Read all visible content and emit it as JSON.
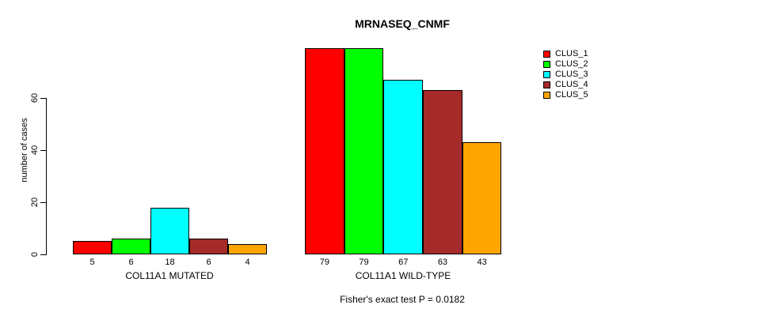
{
  "chart_data": {
    "type": "bar",
    "title": "MRNASEQ_CNMF",
    "ylabel": "number of cases",
    "yticks": [
      0,
      20,
      40,
      60
    ],
    "ylim": [
      0,
      80
    ],
    "grid": false,
    "legend_position": "top-right",
    "series": [
      {
        "name": "CLUS_1",
        "color": "#FF0000"
      },
      {
        "name": "CLUS_2",
        "color": "#00FF00"
      },
      {
        "name": "CLUS_3",
        "color": "#00FFFF"
      },
      {
        "name": "CLUS_4",
        "color": "#A52A2A"
      },
      {
        "name": "CLUS_5",
        "color": "#FFA500"
      }
    ],
    "groups": [
      {
        "label": "COL11A1 MUTATED",
        "values": [
          5,
          6,
          18,
          6,
          4
        ]
      },
      {
        "label": "COL11A1 WILD-TYPE",
        "values": [
          79,
          79,
          67,
          63,
          43
        ]
      }
    ],
    "caption": "Fisher's exact test P = 0.0182"
  }
}
